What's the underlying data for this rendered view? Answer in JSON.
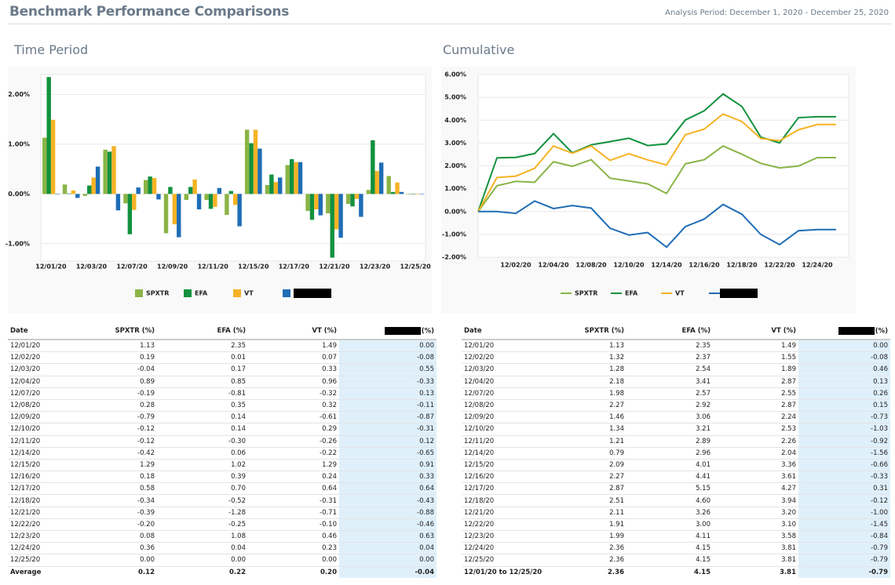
{
  "header": {
    "title": "Benchmark Performance Comparisons",
    "period": "Analysis Period: December 1, 2020 - December 25, 2020"
  },
  "chart_data": [
    {
      "type": "bar",
      "title": "Time Period",
      "categories": [
        "12/01/20",
        null,
        "12/03/20",
        null,
        "12/07/20",
        null,
        "12/09/20",
        null,
        "12/11/20",
        null,
        "12/15/20",
        null,
        "12/17/20",
        null,
        "12/21/20",
        null,
        "12/23/20",
        null,
        "12/25/20"
      ],
      "series": [
        {
          "name": "SPXTR",
          "color": "#8ab446",
          "values": [
            1.13,
            0.19,
            -0.04,
            0.89,
            -0.19,
            0.28,
            -0.79,
            -0.12,
            -0.12,
            -0.42,
            1.29,
            0.18,
            0.58,
            -0.34,
            -0.39,
            -0.2,
            0.08,
            0.36,
            0.0
          ]
        },
        {
          "name": "EFA",
          "color": "#13913f",
          "values": [
            2.35,
            0.01,
            0.17,
            0.85,
            -0.81,
            0.35,
            0.14,
            0.14,
            -0.3,
            0.06,
            1.02,
            0.39,
            0.7,
            -0.52,
            -1.28,
            -0.25,
            1.08,
            0.04,
            0.0
          ]
        },
        {
          "name": "VT",
          "color": "#f5b324",
          "values": [
            1.49,
            0.07,
            0.33,
            0.96,
            -0.32,
            0.32,
            -0.61,
            0.29,
            -0.26,
            -0.22,
            1.29,
            0.24,
            0.64,
            -0.31,
            -0.71,
            -0.1,
            0.46,
            0.23,
            0.0
          ]
        },
        {
          "color": "#1f6db5",
          "values": [
            0.0,
            -0.08,
            0.55,
            -0.33,
            0.13,
            -0.11,
            -0.87,
            -0.31,
            0.12,
            -0.65,
            0.91,
            0.33,
            0.64,
            -0.43,
            -0.88,
            -0.46,
            0.63,
            0.04,
            0.0
          ]
        }
      ],
      "ylim": [
        -1.35,
        2.4
      ],
      "yticks": [
        {
          "value": -1,
          "label": "-1.00%"
        },
        {
          "value": 0,
          "label": "0.00%"
        },
        {
          "value": 1,
          "label": "1.00%"
        },
        {
          "value": 2,
          "label": "2.00%"
        }
      ],
      "grid": true,
      "legend": "bottom"
    },
    {
      "type": "line",
      "title": "Cumulative",
      "categories": [
        null,
        null,
        "12/02/20",
        null,
        "12/04/20",
        null,
        "12/08/20",
        null,
        "12/10/20",
        null,
        "12/14/20",
        null,
        "12/16/20",
        null,
        "12/18/20",
        null,
        "12/22/20",
        null,
        "12/24/20",
        null
      ],
      "series": [
        {
          "name": "SPXTR",
          "color": "#8ab446",
          "values": [
            0,
            1.13,
            1.32,
            1.28,
            2.18,
            1.98,
            2.27,
            1.46,
            1.34,
            1.21,
            0.79,
            2.09,
            2.27,
            2.87,
            2.51,
            2.11,
            1.91,
            1.99,
            2.36,
            2.36
          ]
        },
        {
          "name": "EFA",
          "color": "#13913f",
          "values": [
            0,
            2.35,
            2.37,
            2.54,
            3.41,
            2.57,
            2.92,
            3.06,
            3.21,
            2.89,
            2.96,
            4.01,
            4.41,
            5.15,
            4.6,
            3.26,
            3.0,
            4.11,
            4.15,
            4.15
          ]
        },
        {
          "name": "VT",
          "color": "#f5b324",
          "values": [
            0,
            1.49,
            1.55,
            1.89,
            2.87,
            2.55,
            2.87,
            2.24,
            2.53,
            2.26,
            2.04,
            3.36,
            3.61,
            4.27,
            3.94,
            3.2,
            3.1,
            3.58,
            3.81,
            3.81
          ]
        },
        {
          "color": "#1f6db5",
          "values": [
            0,
            0.0,
            -0.08,
            0.46,
            0.13,
            0.26,
            0.15,
            -0.73,
            -1.03,
            -0.92,
            -1.56,
            -0.66,
            -0.33,
            0.31,
            -0.12,
            -1.0,
            -1.45,
            -0.84,
            -0.79,
            -0.79
          ]
        }
      ],
      "ylim": [
        -2,
        6
      ],
      "yticks": [
        {
          "value": -2,
          "label": "-2.00%"
        },
        {
          "value": -1,
          "label": "-1.00%"
        },
        {
          "value": 0,
          "label": "0.00%"
        },
        {
          "value": 1,
          "label": "1.00%"
        },
        {
          "value": 2,
          "label": "2.00%"
        },
        {
          "value": 3,
          "label": "3.00%"
        },
        {
          "value": 4,
          "label": "4.00%"
        },
        {
          "value": 5,
          "label": "5.00%"
        },
        {
          "value": 6,
          "label": "6.00%"
        }
      ],
      "grid": true,
      "legend": "bottom"
    }
  ],
  "tables": [
    {
      "columns": [
        "Date",
        "SPXTR (%)",
        "EFA (%)",
        "VT (%)",
        "(%)"
      ],
      "rows": [
        [
          "12/01/20",
          "1.13",
          "2.35",
          "1.49",
          "0.00"
        ],
        [
          "12/02/20",
          "0.19",
          "0.01",
          "0.07",
          "-0.08"
        ],
        [
          "12/03/20",
          "-0.04",
          "0.17",
          "0.33",
          "0.55"
        ],
        [
          "12/04/20",
          "0.89",
          "0.85",
          "0.96",
          "-0.33"
        ],
        [
          "12/07/20",
          "-0.19",
          "-0.81",
          "-0.32",
          "0.13"
        ],
        [
          "12/08/20",
          "0.28",
          "0.35",
          "0.32",
          "-0.11"
        ],
        [
          "12/09/20",
          "-0.79",
          "0.14",
          "-0.61",
          "-0.87"
        ],
        [
          "12/10/20",
          "-0.12",
          "0.14",
          "0.29",
          "-0.31"
        ],
        [
          "12/11/20",
          "-0.12",
          "-0.30",
          "-0.26",
          "0.12"
        ],
        [
          "12/14/20",
          "-0.42",
          "0.06",
          "-0.22",
          "-0.65"
        ],
        [
          "12/15/20",
          "1.29",
          "1.02",
          "1.29",
          "0.91"
        ],
        [
          "12/16/20",
          "0.18",
          "0.39",
          "0.24",
          "0.33"
        ],
        [
          "12/17/20",
          "0.58",
          "0.70",
          "0.64",
          "0.64"
        ],
        [
          "12/18/20",
          "-0.34",
          "-0.52",
          "-0.31",
          "-0.43"
        ],
        [
          "12/21/20",
          "-0.39",
          "-1.28",
          "-0.71",
          "-0.88"
        ],
        [
          "12/22/20",
          "-0.20",
          "-0.25",
          "-0.10",
          "-0.46"
        ],
        [
          "12/23/20",
          "0.08",
          "1.08",
          "0.46",
          "0.63"
        ],
        [
          "12/24/20",
          "0.36",
          "0.04",
          "0.23",
          "0.04"
        ],
        [
          "12/25/20",
          "0.00",
          "0.00",
          "0.00",
          "0.00"
        ]
      ],
      "footer": [
        "Average",
        "0.12",
        "0.22",
        "0.20",
        "-0.04"
      ]
    },
    {
      "columns": [
        "Date",
        "SPXTR (%)",
        "EFA (%)",
        "VT (%)",
        "(%)"
      ],
      "rows": [
        [
          "12/01/20",
          "1.13",
          "2.35",
          "1.49",
          "0.00"
        ],
        [
          "12/02/20",
          "1.32",
          "2.37",
          "1.55",
          "-0.08"
        ],
        [
          "12/03/20",
          "1.28",
          "2.54",
          "1.89",
          "0.46"
        ],
        [
          "12/04/20",
          "2.18",
          "3.41",
          "2.87",
          "0.13"
        ],
        [
          "12/07/20",
          "1.98",
          "2.57",
          "2.55",
          "0.26"
        ],
        [
          "12/08/20",
          "2.27",
          "2.92",
          "2.87",
          "0.15"
        ],
        [
          "12/09/20",
          "1.46",
          "3.06",
          "2.24",
          "-0.73"
        ],
        [
          "12/10/20",
          "1.34",
          "3.21",
          "2.53",
          "-1.03"
        ],
        [
          "12/11/20",
          "1.21",
          "2.89",
          "2.26",
          "-0.92"
        ],
        [
          "12/14/20",
          "0.79",
          "2.96",
          "2.04",
          "-1.56"
        ],
        [
          "12/15/20",
          "2.09",
          "4.01",
          "3.36",
          "-0.66"
        ],
        [
          "12/16/20",
          "2.27",
          "4.41",
          "3.61",
          "-0.33"
        ],
        [
          "12/17/20",
          "2.87",
          "5.15",
          "4.27",
          "0.31"
        ],
        [
          "12/18/20",
          "2.51",
          "4.60",
          "3.94",
          "-0.12"
        ],
        [
          "12/21/20",
          "2.11",
          "3.26",
          "3.20",
          "-1.00"
        ],
        [
          "12/22/20",
          "1.91",
          "3.00",
          "3.10",
          "-1.45"
        ],
        [
          "12/23/20",
          "1.99",
          "4.11",
          "3.58",
          "-0.84"
        ],
        [
          "12/24/20",
          "2.36",
          "4.15",
          "3.81",
          "-0.79"
        ],
        [
          "12/25/20",
          "2.36",
          "4.15",
          "3.81",
          "-0.79"
        ]
      ],
      "footer": [
        "12/01/20 to 12/25/20",
        "2.36",
        "4.15",
        "3.81",
        "-0.79"
      ]
    }
  ]
}
